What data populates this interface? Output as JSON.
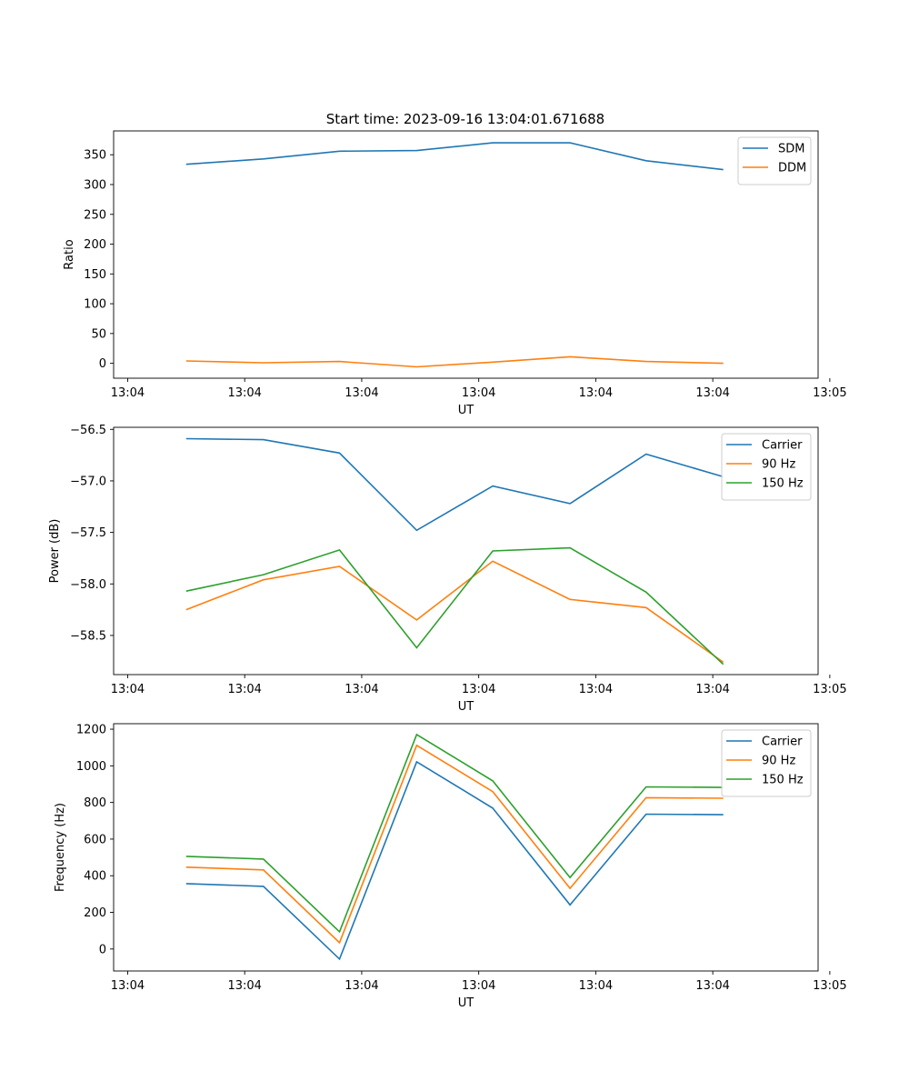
{
  "figure_title": "Start time: 2023-09-16 13:04:01.671688",
  "colors": {
    "blue": "#1f77b4",
    "orange": "#ff7f0e",
    "green": "#2ca02c"
  },
  "chart_data": [
    {
      "type": "line",
      "xlabel": "UT",
      "ylabel": "Ratio",
      "x_sample": [
        0.5,
        1.16,
        1.81,
        2.47,
        3.12,
        3.78,
        4.43,
        5.09
      ],
      "xlim": [
        -0.12,
        5.9
      ],
      "xticks": [
        0,
        1,
        2,
        3,
        4,
        5,
        6
      ],
      "xtick_labels": [
        "13:04",
        "13:04",
        "13:04",
        "13:04",
        "13:04",
        "13:04",
        "13:05"
      ],
      "ylim": [
        -25,
        390
      ],
      "yticks": [
        0,
        50,
        100,
        150,
        200,
        250,
        300,
        350
      ],
      "ytick_labels": [
        "0",
        "50",
        "100",
        "150",
        "200",
        "250",
        "300",
        "350"
      ],
      "legend_position": "top-right",
      "series": [
        {
          "name": "SDM",
          "color": "#1f77b4",
          "values": [
            334,
            343,
            356,
            357,
            370,
            370,
            340,
            325
          ]
        },
        {
          "name": "DDM",
          "color": "#ff7f0e",
          "values": [
            4,
            1,
            3,
            -6,
            2,
            11,
            3,
            0
          ]
        }
      ]
    },
    {
      "type": "line",
      "xlabel": "UT",
      "ylabel": "Power (dB)",
      "x_sample": [
        0.5,
        1.16,
        1.81,
        2.47,
        3.12,
        3.78,
        4.43,
        5.09
      ],
      "xlim": [
        -0.12,
        5.9
      ],
      "xticks": [
        0,
        1,
        2,
        3,
        4,
        5,
        6
      ],
      "xtick_labels": [
        "13:04",
        "13:04",
        "13:04",
        "13:04",
        "13:04",
        "13:04",
        "13:05"
      ],
      "ylim": [
        -58.88,
        -56.48
      ],
      "yticks": [
        -56.5,
        -57.0,
        -57.5,
        -58.0,
        -58.5
      ],
      "ytick_labels": [
        "−56.5",
        "−57.0",
        "−57.5",
        "−58.0",
        "−58.5"
      ],
      "legend_position": "top-right",
      "series": [
        {
          "name": "Carrier",
          "color": "#1f77b4",
          "values": [
            -56.59,
            -56.6,
            -56.73,
            -57.48,
            -57.05,
            -57.22,
            -56.74,
            -56.96
          ]
        },
        {
          "name": "90 Hz",
          "color": "#ff7f0e",
          "values": [
            -58.25,
            -57.96,
            -57.83,
            -58.35,
            -57.78,
            -58.15,
            -58.23,
            -58.76
          ]
        },
        {
          "name": "150 Hz",
          "color": "#2ca02c",
          "values": [
            -58.07,
            -57.91,
            -57.67,
            -58.62,
            -57.68,
            -57.65,
            -58.08,
            -58.78
          ]
        }
      ]
    },
    {
      "type": "line",
      "xlabel": "UT",
      "ylabel": "Frequency (Hz)",
      "x_sample": [
        0.5,
        1.16,
        1.81,
        2.47,
        3.12,
        3.78,
        4.43,
        5.09
      ],
      "xlim": [
        -0.12,
        5.9
      ],
      "xticks": [
        0,
        1,
        2,
        3,
        4,
        5,
        6
      ],
      "xtick_labels": [
        "13:04",
        "13:04",
        "13:04",
        "13:04",
        "13:04",
        "13:04",
        "13:05"
      ],
      "ylim": [
        -120,
        1230
      ],
      "yticks": [
        0,
        200,
        400,
        600,
        800,
        1000,
        1200
      ],
      "ytick_labels": [
        "0",
        "200",
        "400",
        "600",
        "800",
        "1000",
        "1200"
      ],
      "legend_position": "top-right",
      "series": [
        {
          "name": "Carrier",
          "color": "#1f77b4",
          "values": [
            357,
            342,
            -55,
            1022,
            769,
            241,
            736,
            733
          ]
        },
        {
          "name": "90 Hz",
          "color": "#ff7f0e",
          "values": [
            447,
            432,
            35,
            1112,
            859,
            331,
            826,
            823
          ]
        },
        {
          "name": "150 Hz",
          "color": "#2ca02c",
          "values": [
            506,
            491,
            94,
            1171,
            918,
            390,
            885,
            882
          ]
        }
      ]
    }
  ]
}
